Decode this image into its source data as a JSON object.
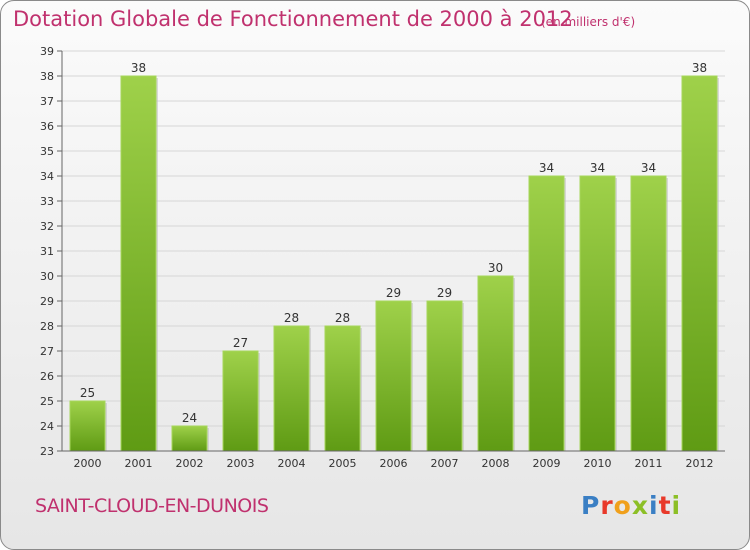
{
  "header": {
    "title": "Dotation Globale de Fonctionnement de 2000 à 2012",
    "subtitle": "(en milliers d'€)"
  },
  "footer": {
    "commune": "SAINT-CLOUD-EN-DUNOIS",
    "logo_letters": [
      {
        "ch": "P",
        "color": "#3a7fc4"
      },
      {
        "ch": "r",
        "color": "#e8392a"
      },
      {
        "ch": "o",
        "color": "#f0a01c"
      },
      {
        "ch": "x",
        "color": "#8cbf26"
      },
      {
        "ch": "i",
        "color": "#3a7fc4"
      },
      {
        "ch": "t",
        "color": "#e8392a"
      },
      {
        "ch": "i",
        "color": "#8cbf26"
      }
    ]
  },
  "colors": {
    "title": "#c0316e",
    "bar_light": "#9fd14a",
    "bar_dark": "#5f9b14"
  },
  "chart_data": {
    "type": "bar",
    "title": "Dotation Globale de Fonctionnement de 2000 à 2012",
    "subtitle": "(en milliers d'€)",
    "categories": [
      "2000",
      "2001",
      "2002",
      "2003",
      "2004",
      "2005",
      "2006",
      "2007",
      "2008",
      "2009",
      "2010",
      "2011",
      "2012"
    ],
    "values": [
      25,
      38,
      24,
      27,
      28,
      28,
      29,
      29,
      30,
      34,
      34,
      34,
      38
    ],
    "ylim": [
      23,
      39
    ],
    "yticks": [
      23,
      24,
      25,
      26,
      27,
      28,
      29,
      30,
      31,
      32,
      33,
      34,
      35,
      36,
      37,
      38,
      39
    ],
    "grid": true,
    "xlabel": "",
    "ylabel": ""
  }
}
